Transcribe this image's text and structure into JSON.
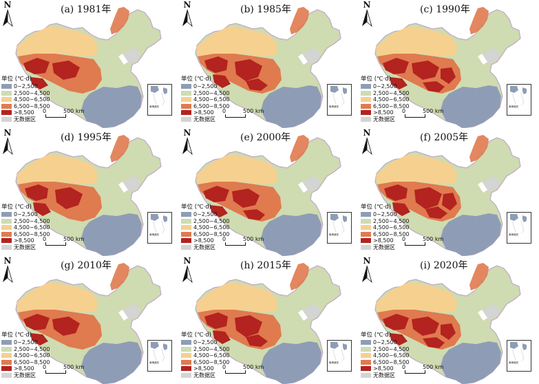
{
  "figure": {
    "panels": [
      {
        "title": "(a) 1981年"
      },
      {
        "title": "(b) 1985年"
      },
      {
        "title": "(c) 1990年"
      },
      {
        "title": "(d) 1995年"
      },
      {
        "title": "(e) 2000年"
      },
      {
        "title": "(f) 2005年"
      },
      {
        "title": "(g) 2010年"
      },
      {
        "title": "(h) 2015年"
      },
      {
        "title": "(i) 2020年"
      }
    ],
    "north_label": "N",
    "legend": {
      "title": "单位 (℃·d)",
      "items": [
        {
          "label": "0~2,500",
          "color": "#8e9db5"
        },
        {
          "label": "2,500~4,500",
          "color": "#cfdbb0"
        },
        {
          "label": "4,500~6,500",
          "color": "#f6d08f"
        },
        {
          "label": "6,500~8,500",
          "color": "#e07a4f"
        },
        {
          "label": ">8,500",
          "color": "#b3231f"
        },
        {
          "label": "无数据区",
          "color": "#d4d4d4"
        }
      ]
    },
    "scale_bar": {
      "zero": "0",
      "distance": "500 km"
    },
    "inset_label": "南海诸岛"
  }
}
